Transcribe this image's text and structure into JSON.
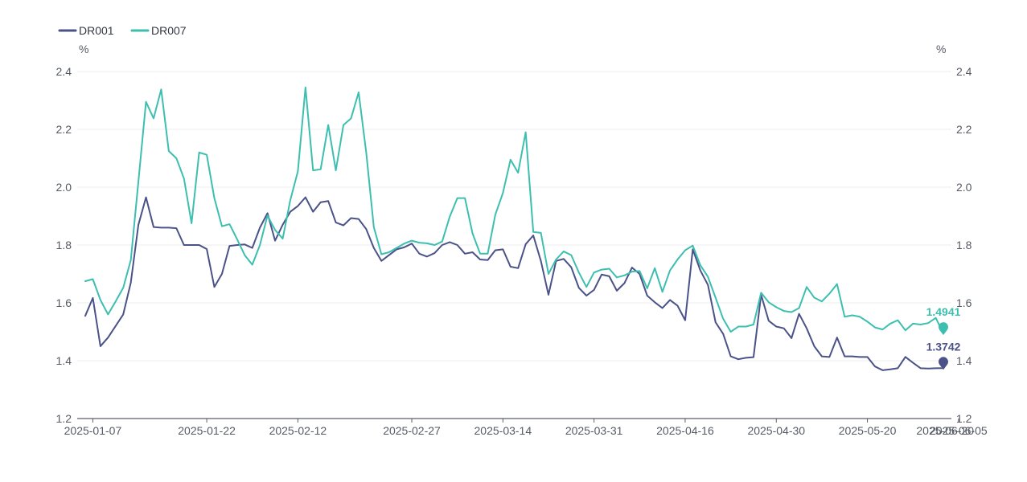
{
  "chart_data": {
    "type": "line",
    "title": "",
    "y_unit_left": "%",
    "y_unit_right": "%",
    "ylim": [
      1.2,
      2.4
    ],
    "y_ticks": [
      "1.2",
      "1.4",
      "1.6",
      "1.8",
      "2.0",
      "2.2",
      "2.4"
    ],
    "x_tick_labels": [
      "2025-01-07",
      "2025-01-22",
      "2025-02-12",
      "2025-02-27",
      "2025-03-14",
      "2025-03-31",
      "2025-04-16",
      "2025-04-30",
      "2025-05-20",
      "2025-06-05",
      "2025-06-20"
    ],
    "x_tick_indices": [
      1,
      16,
      28,
      43,
      55,
      67,
      79,
      91,
      103,
      115,
      127
    ],
    "grid": true,
    "legend_position": "top-left",
    "colors": {
      "DR001": "#4a5288",
      "DR007": "#3dbfb0"
    },
    "series": [
      {
        "name": "DR001",
        "end_label": "1.3742",
        "values": [
          1.555,
          1.617,
          1.45,
          1.48,
          1.52,
          1.56,
          1.67,
          1.87,
          1.965,
          1.862,
          1.86,
          1.86,
          1.858,
          1.8,
          1.8,
          1.8,
          1.786,
          1.655,
          1.7,
          1.797,
          1.8,
          1.802,
          1.79,
          1.86,
          1.91,
          1.815,
          1.87,
          1.915,
          1.935,
          1.965,
          1.915,
          1.948,
          1.952,
          1.878,
          1.868,
          1.893,
          1.89,
          1.855,
          1.79,
          1.745,
          1.765,
          1.785,
          1.792,
          1.805,
          1.77,
          1.76,
          1.772,
          1.8,
          1.81,
          1.8,
          1.77,
          1.775,
          1.75,
          1.748,
          1.782,
          1.785,
          1.725,
          1.72,
          1.803,
          1.833,
          1.745,
          1.628,
          1.745,
          1.752,
          1.723,
          1.652,
          1.625,
          1.645,
          1.698,
          1.692,
          1.642,
          1.668,
          1.722,
          1.7,
          1.625,
          1.602,
          1.582,
          1.61,
          1.59,
          1.54,
          1.785,
          1.712,
          1.662,
          1.533,
          1.493,
          1.415,
          1.405,
          1.41,
          1.412,
          1.628,
          1.538,
          1.518,
          1.512,
          1.478,
          1.562,
          1.512,
          1.45,
          1.415,
          1.413,
          1.48,
          1.415,
          1.415,
          1.413,
          1.413,
          1.38,
          1.367,
          1.37,
          1.374,
          1.413,
          1.393,
          1.374,
          1.373,
          1.374,
          1.3742
        ]
      },
      {
        "name": "DR007",
        "end_label": "1.4941",
        "values": [
          1.675,
          1.682,
          1.61,
          1.56,
          1.605,
          1.652,
          1.748,
          2.02,
          2.295,
          2.238,
          2.338,
          2.125,
          2.1,
          2.03,
          1.875,
          2.12,
          2.112,
          1.962,
          1.865,
          1.872,
          1.82,
          1.765,
          1.732,
          1.8,
          1.902,
          1.852,
          1.822,
          1.955,
          2.055,
          2.345,
          2.058,
          2.062,
          2.215,
          2.058,
          2.215,
          2.238,
          2.328,
          2.12,
          1.862,
          1.768,
          1.775,
          1.79,
          1.805,
          1.815,
          1.808,
          1.806,
          1.8,
          1.812,
          1.898,
          1.962,
          1.962,
          1.84,
          1.77,
          1.77,
          1.905,
          1.98,
          2.095,
          2.05,
          2.19,
          1.845,
          1.842,
          1.7,
          1.75,
          1.778,
          1.765,
          1.705,
          1.655,
          1.705,
          1.715,
          1.718,
          1.688,
          1.695,
          1.708,
          1.71,
          1.65,
          1.72,
          1.638,
          1.712,
          1.75,
          1.782,
          1.798,
          1.73,
          1.69,
          1.618,
          1.545,
          1.5,
          1.518,
          1.518,
          1.525,
          1.635,
          1.602,
          1.585,
          1.572,
          1.568,
          1.582,
          1.655,
          1.618,
          1.605,
          1.632,
          1.665,
          1.552,
          1.557,
          1.552,
          1.535,
          1.515,
          1.508,
          1.528,
          1.54,
          1.505,
          1.528,
          1.525,
          1.53,
          1.548,
          1.4941
        ]
      }
    ]
  }
}
